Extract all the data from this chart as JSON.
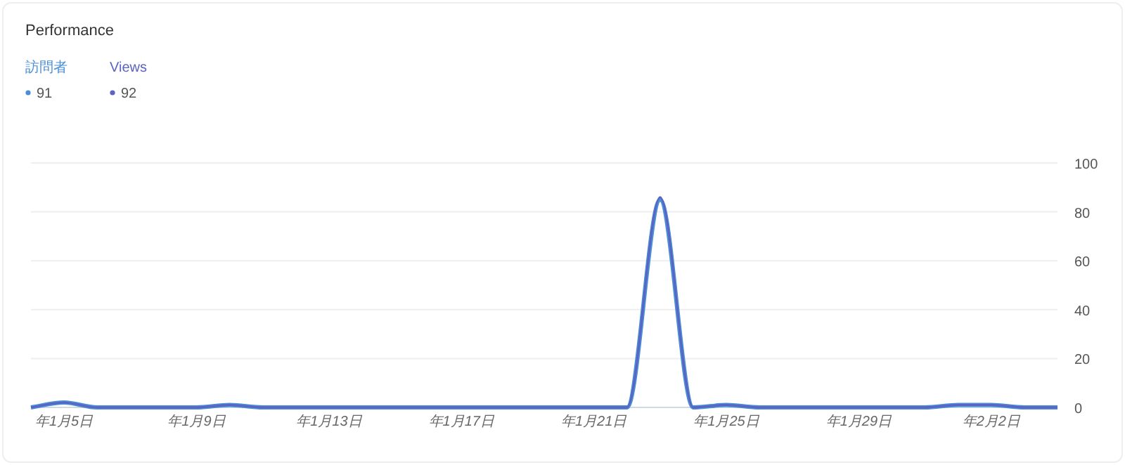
{
  "chart_data": {
    "type": "line",
    "title": "Performance",
    "categories": [
      null,
      "年1月5日",
      null,
      null,
      null,
      "年1月9日",
      null,
      null,
      null,
      "年1月13日",
      null,
      null,
      null,
      "年1月17日",
      null,
      null,
      null,
      "年1月21日",
      null,
      null,
      null,
      "年1月25日",
      null,
      null,
      null,
      "年1月29日",
      null,
      null,
      null,
      "年2月2日",
      null,
      null
    ],
    "series": [
      {
        "name": "訪問者",
        "color": "#4a8fd6",
        "values": [
          0,
          2,
          0,
          0,
          0,
          0,
          1,
          0,
          0,
          0,
          0,
          0,
          0,
          0,
          0,
          0,
          0,
          0,
          0,
          85,
          0,
          1,
          0,
          0,
          0,
          0,
          0,
          0,
          1,
          1,
          0,
          0
        ]
      },
      {
        "name": "Views",
        "color": "#5b63c4",
        "values": [
          0,
          2,
          0,
          0,
          0,
          0,
          1,
          0,
          0,
          0,
          0,
          0,
          0,
          0,
          0,
          0,
          0,
          0,
          0,
          86,
          0,
          1,
          0,
          0,
          0,
          0,
          0,
          0,
          1,
          1,
          0,
          0
        ]
      }
    ],
    "annotations": [
      "91",
      "92"
    ],
    "ylim": [
      0,
      100
    ],
    "yticks": [
      0,
      20,
      40,
      60,
      80,
      100
    ],
    "grid": "y",
    "legend": "top left"
  }
}
